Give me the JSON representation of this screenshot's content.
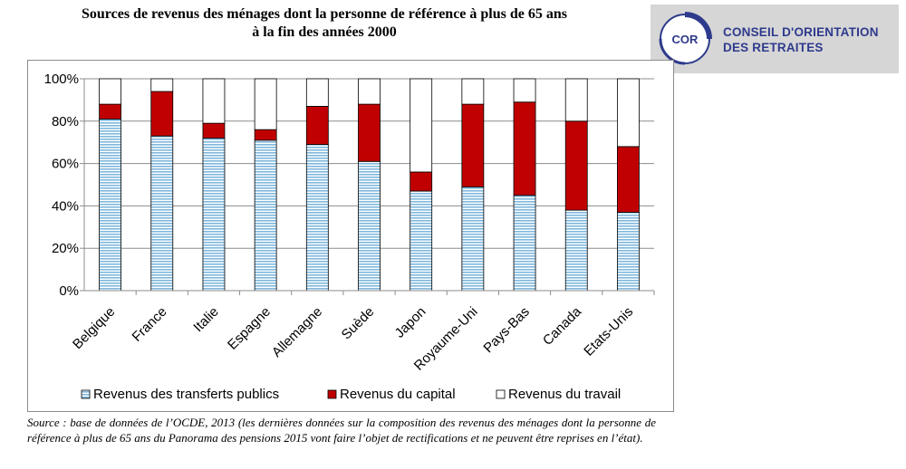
{
  "title_line1": "Sources de revenus des ménages dont la personne de référence à plus de 65 ans",
  "title_line2": "à la fin des années 2000",
  "logo": {
    "mark_text": "COR",
    "name_line1": "CONSEIL D'ORIENTATION",
    "name_line2": "DES RETRAITES",
    "color": "#2e3a8c"
  },
  "source_text": "Source : base de données de l’OCDE, 2013 (les dernières données sur la composition des revenus des ménages dont la personne de référence à plus de 65 ans du Panorama des pensions 2015 vont faire l’objet de rectifications et ne peuvent être reprises en l’état).",
  "chart_data": {
    "type": "bar",
    "stacked": true,
    "percent": true,
    "categories": [
      "Belgique",
      "France",
      "Italie",
      "Espagne",
      "Allemagne",
      "Suède",
      "Japon",
      "Royaume-Uni",
      "Pays-Bas",
      "Canada",
      "Etats-Unis"
    ],
    "series": [
      {
        "name": "Revenus des transferts publics",
        "values": [
          81,
          73,
          72,
          71,
          69,
          61,
          47,
          49,
          45,
          38,
          37
        ],
        "color": "#9ccae6",
        "pattern": "horizontal-stripes"
      },
      {
        "name": "Revenus du capital",
        "values": [
          7,
          21,
          7,
          5,
          18,
          27,
          9,
          39,
          44,
          42,
          31
        ],
        "color": "#c00000"
      },
      {
        "name": "Revenus du travail",
        "values": [
          12,
          6,
          21,
          24,
          13,
          12,
          44,
          12,
          11,
          20,
          32
        ],
        "color": "#ffffff"
      }
    ],
    "yticks": [
      "0%",
      "20%",
      "40%",
      "60%",
      "80%",
      "100%"
    ],
    "ylim": [
      0,
      100
    ],
    "xlabel": "",
    "ylabel": "",
    "grid": true,
    "legend_position": "bottom"
  }
}
